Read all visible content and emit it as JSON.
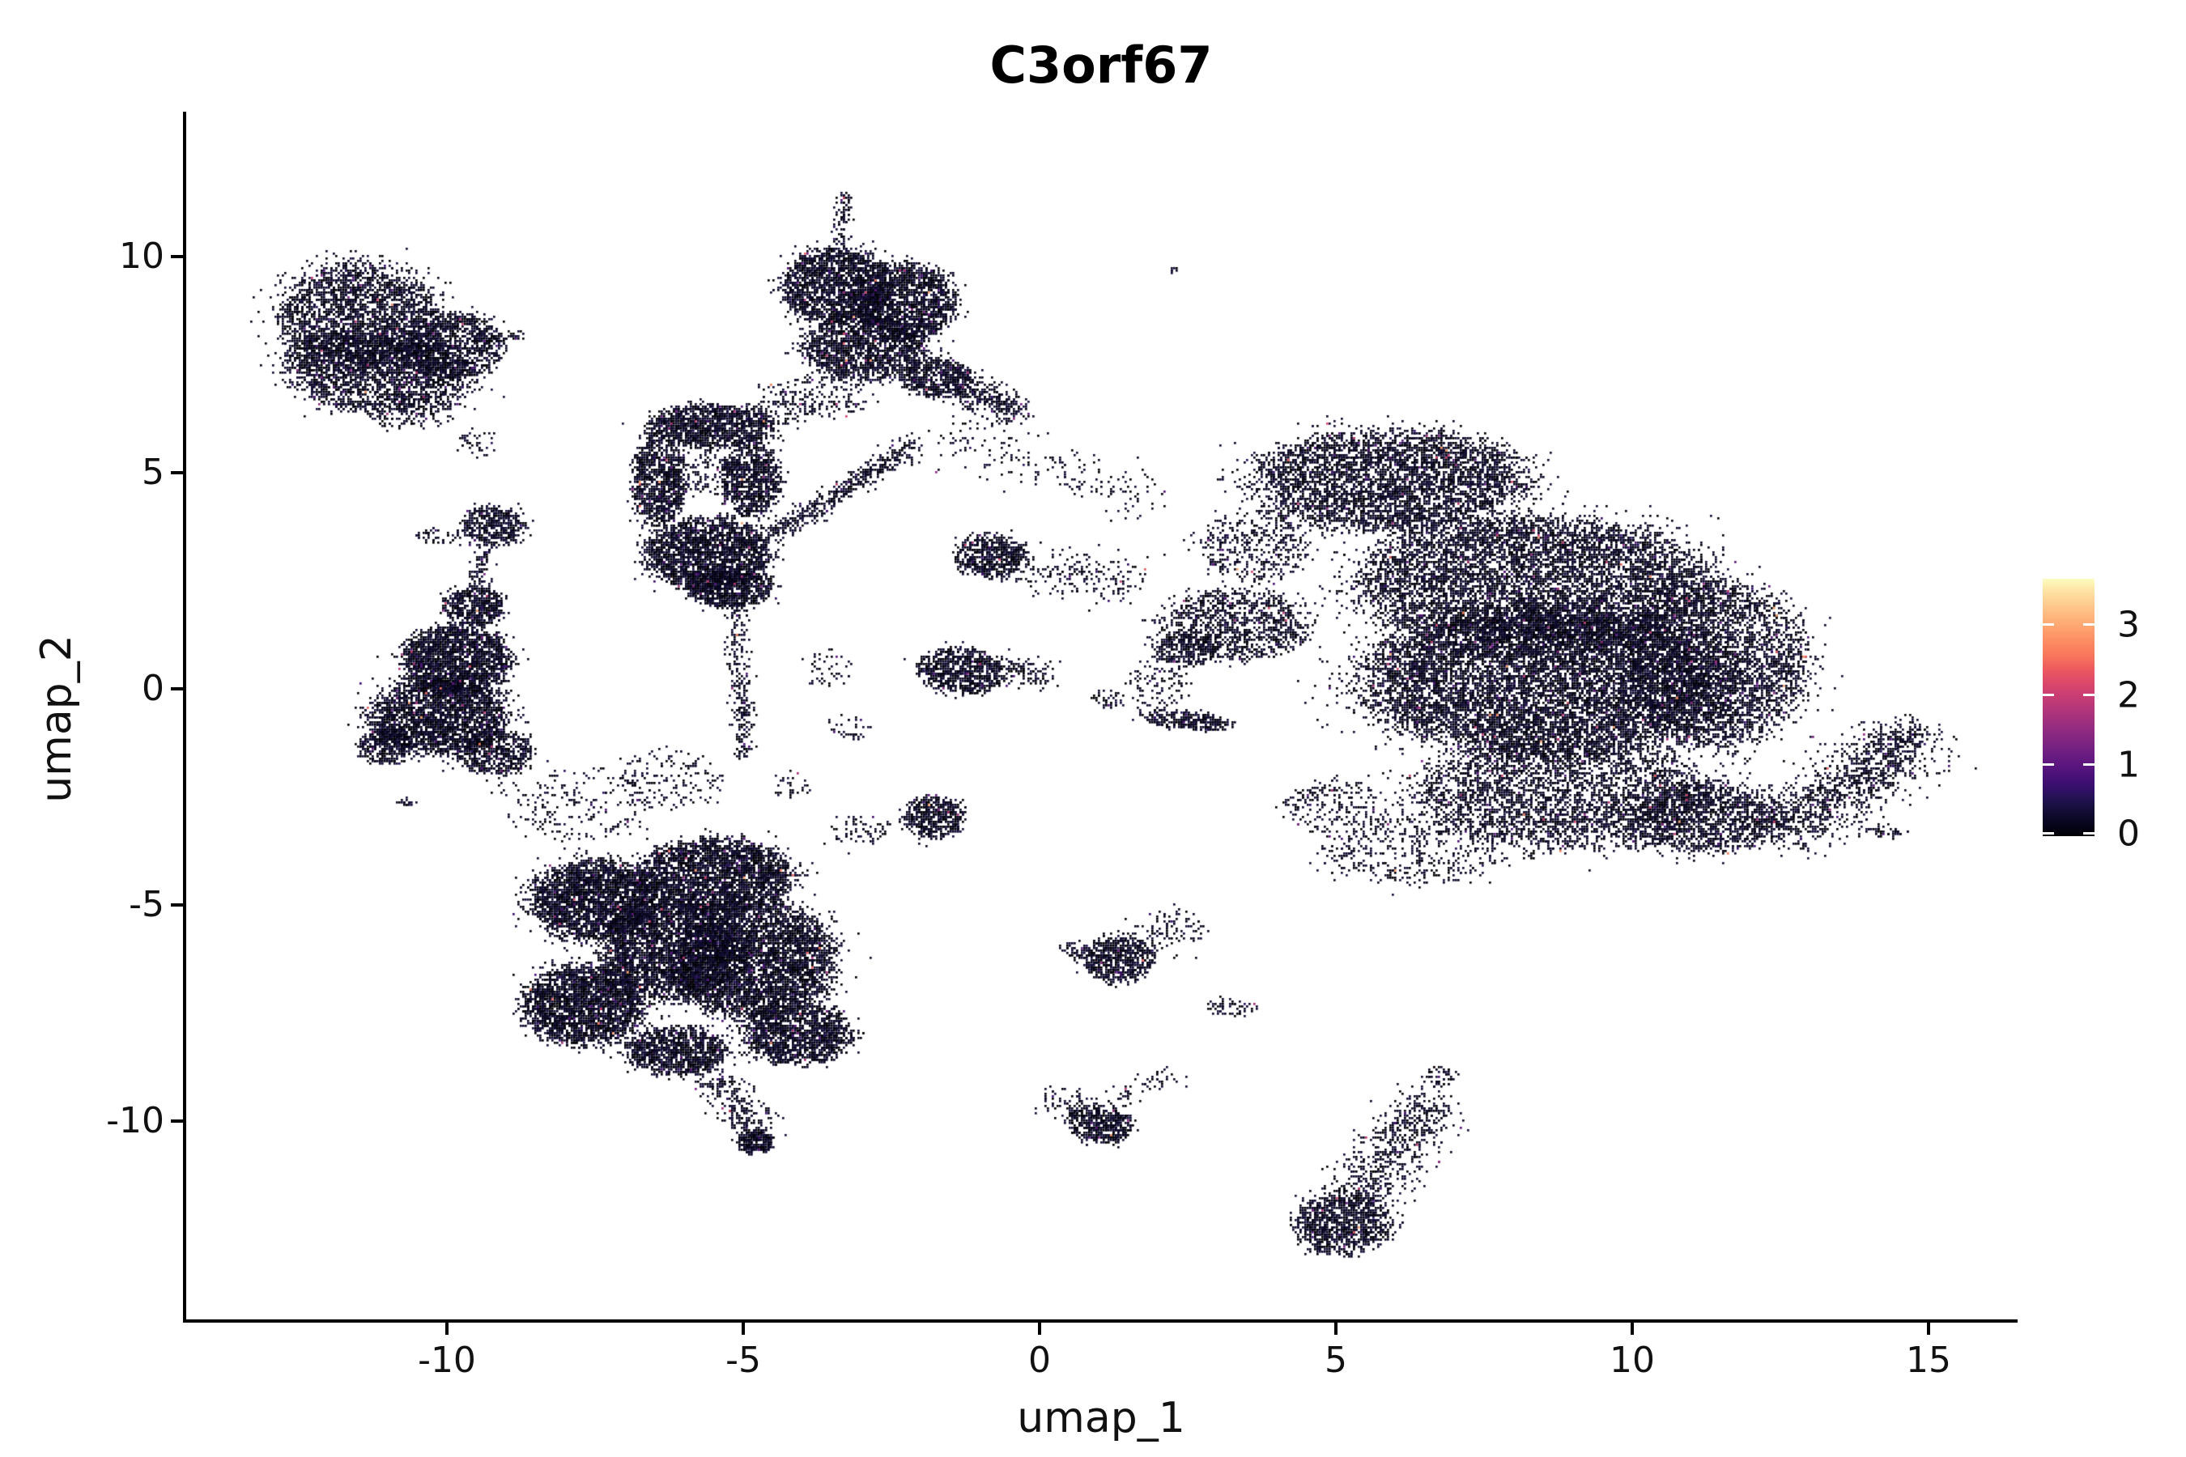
{
  "title": "C3orf67",
  "axes": {
    "xlabel": "umap_1",
    "ylabel": "umap_2",
    "x_ticks": [
      "-10",
      "-5",
      "0",
      "5",
      "10",
      "15"
    ],
    "y_ticks": [
      "10",
      "5",
      "0",
      "-5",
      "-10"
    ]
  },
  "colorbar": {
    "labels": [
      "3",
      "2",
      "1",
      "0"
    ],
    "tick_values": [
      3,
      2,
      1,
      0
    ],
    "value_range": [
      0,
      3.65
    ],
    "colormap": "magma",
    "gradient_bottom_to_top": [
      "#000004",
      "#07051e",
      "#140e36",
      "#251255",
      "#3b0f70",
      "#51127c",
      "#641a80",
      "#782281",
      "#8c2981",
      "#a1307e",
      "#b73779",
      "#ca3e72",
      "#de4968",
      "#ed5a5f",
      "#f8765c",
      "#fc8961",
      "#fe9f6d",
      "#feb57c",
      "#fecb8f",
      "#fde2a3",
      "#fcfdbf"
    ]
  },
  "chart_data": {
    "type": "scatter",
    "title": "C3orf67",
    "xlabel": "umap_1",
    "ylabel": "umap_2",
    "x_tick_values": [
      -10,
      -5,
      0,
      5,
      10,
      15
    ],
    "y_tick_values": [
      10,
      5,
      0,
      -5,
      -10
    ],
    "xlim": [
      -14.4,
      16.5
    ],
    "ylim": [
      -14.6,
      13.4
    ],
    "grid": false,
    "legend": "colorbar right, expression 0-3.65, magma",
    "point_palette": {
      "dark": [
        "#000004",
        "#010107",
        "#030313",
        "#06051c",
        "#090724",
        "#0d092b",
        "#110c33",
        "#15103a"
      ],
      "purple": [
        "#2c115f",
        "#3b0f70",
        "#4c1277",
        "#5c177f"
      ],
      "magenta": [
        "#792282",
        "#8f2a7f",
        "#a82e78",
        "#c03a6f"
      ],
      "warm": [
        "#d8456c",
        "#eb5f5f",
        "#f67e58",
        "#fba26b"
      ]
    },
    "clusters": [
      {
        "id": "A1",
        "shape": "blob",
        "cx": -11.5,
        "cy": 8.6,
        "rx": 1.35,
        "ry": 1.25,
        "rot": -12,
        "n": 2600
      },
      {
        "id": "A2",
        "shape": "blob",
        "cx": -11.2,
        "cy": 7.35,
        "rx": 1.55,
        "ry": 0.95,
        "rot": -8,
        "n": 2300
      },
      {
        "id": "A3",
        "shape": "blob",
        "cx": -9.95,
        "cy": 7.95,
        "rx": 0.85,
        "ry": 0.8,
        "rot": 0,
        "n": 1100
      },
      {
        "id": "A4",
        "shape": "chain",
        "pts": [
          [
            -9.6,
            8.05
          ],
          [
            -8.75,
            8.2
          ]
        ],
        "w": 0.09,
        "n": 70
      },
      {
        "id": "A5",
        "shape": "blob",
        "cx": -10.6,
        "cy": 6.45,
        "rx": 0.7,
        "ry": 0.38,
        "rot": 0,
        "n": 120
      },
      {
        "id": "A6",
        "shape": "blob",
        "cx": -9.5,
        "cy": 5.7,
        "rx": 0.35,
        "ry": 0.35,
        "rot": 0,
        "n": 40
      },
      {
        "id": "B1",
        "shape": "blob",
        "cx": -3.45,
        "cy": 9.35,
        "rx": 0.9,
        "ry": 0.85,
        "rot": 0,
        "n": 1900
      },
      {
        "id": "B2",
        "shape": "blob",
        "cx": -2.3,
        "cy": 8.95,
        "rx": 0.85,
        "ry": 0.9,
        "rot": 0,
        "n": 1800
      },
      {
        "id": "B3",
        "shape": "blob",
        "cx": -2.95,
        "cy": 7.9,
        "rx": 1.05,
        "ry": 0.75,
        "rot": 0,
        "n": 1600
      },
      {
        "id": "B4",
        "shape": "blob",
        "cx": -1.75,
        "cy": 7.2,
        "rx": 0.6,
        "ry": 0.45,
        "rot": 0,
        "n": 550
      },
      {
        "id": "B5",
        "shape": "chain",
        "pts": [
          [
            -1.25,
            6.95
          ],
          [
            -0.3,
            6.4
          ]
        ],
        "w": 0.2,
        "n": 280
      },
      {
        "id": "B6",
        "shape": "chain",
        "pts": [
          [
            -3.38,
            10.25
          ],
          [
            -3.3,
            11.5
          ]
        ],
        "w": 0.07,
        "n": 90
      },
      {
        "id": "B7",
        "shape": "blob",
        "cx": -3.7,
        "cy": 6.8,
        "rx": 0.8,
        "ry": 0.5,
        "rot": 0,
        "n": 160
      },
      {
        "id": "B8",
        "shape": "chain",
        "pts": [
          [
            -1.6,
            5.9
          ],
          [
            0.2,
            5.1
          ],
          [
            1.9,
            4.35
          ]
        ],
        "w": 0.3,
        "n": 200
      },
      {
        "id": "C1",
        "shape": "blob",
        "cx": -5.55,
        "cy": 6.1,
        "rx": 1.05,
        "ry": 0.5,
        "rot": 0,
        "n": 1300
      },
      {
        "id": "C2",
        "shape": "blob",
        "cx": -6.45,
        "cy": 4.8,
        "rx": 0.45,
        "ry": 1.0,
        "rot": 0,
        "n": 950
      },
      {
        "id": "C3",
        "shape": "blob",
        "cx": -4.9,
        "cy": 4.85,
        "rx": 0.5,
        "ry": 0.85,
        "rot": 0,
        "n": 950
      },
      {
        "id": "C4",
        "shape": "blob",
        "cx": -5.6,
        "cy": 3.15,
        "rx": 1.05,
        "ry": 0.8,
        "rot": 0,
        "n": 2300
      },
      {
        "id": "C5",
        "shape": "blob",
        "cx": -5.25,
        "cy": 2.35,
        "rx": 0.7,
        "ry": 0.45,
        "rot": 0,
        "n": 800
      },
      {
        "id": "C6",
        "shape": "blob",
        "cx": -5.7,
        "cy": 5.0,
        "rx": 0.6,
        "ry": 0.55,
        "rot": 0,
        "n": 140
      },
      {
        "id": "C7",
        "shape": "chain",
        "pts": [
          [
            -5.15,
            1.95
          ],
          [
            -5.05,
            0.1
          ],
          [
            -5.0,
            -1.55
          ]
        ],
        "w": 0.1,
        "n": 280
      },
      {
        "id": "C8",
        "shape": "chain",
        "pts": [
          [
            -4.5,
            3.6
          ],
          [
            -3.3,
            4.65
          ],
          [
            -2.1,
            5.7
          ]
        ],
        "w": 0.13,
        "n": 480
      },
      {
        "id": "C9",
        "shape": "blob",
        "cx": -4.35,
        "cy": 6.6,
        "rx": 0.6,
        "ry": 0.45,
        "rot": 0,
        "n": 90
      },
      {
        "id": "S1",
        "shape": "blob",
        "cx": -9.25,
        "cy": 3.8,
        "rx": 0.5,
        "ry": 0.45,
        "rot": 0,
        "n": 440
      },
      {
        "id": "S1b",
        "shape": "blob",
        "cx": -10.15,
        "cy": 3.55,
        "rx": 0.35,
        "ry": 0.2,
        "rot": 0,
        "n": 50
      },
      {
        "id": "S1c",
        "shape": "chain",
        "pts": [
          [
            -9.35,
            3.3
          ],
          [
            -9.5,
            2.45
          ]
        ],
        "w": 0.1,
        "n": 80
      },
      {
        "id": "D1",
        "shape": "blob",
        "cx": -9.55,
        "cy": 1.95,
        "rx": 0.5,
        "ry": 0.45,
        "rot": 0,
        "n": 550
      },
      {
        "id": "D2",
        "shape": "blob",
        "cx": -9.85,
        "cy": 0.7,
        "rx": 0.9,
        "ry": 0.8,
        "rot": 0,
        "n": 2000
      },
      {
        "id": "D3",
        "shape": "blob",
        "cx": -10.15,
        "cy": -0.6,
        "rx": 1.15,
        "ry": 0.9,
        "rot": 0,
        "n": 2700
      },
      {
        "id": "D4",
        "shape": "blob",
        "cx": -11.05,
        "cy": -1.3,
        "rx": 0.45,
        "ry": 0.4,
        "rot": 0,
        "n": 380
      },
      {
        "id": "D5",
        "shape": "blob",
        "cx": -9.2,
        "cy": -1.45,
        "rx": 0.6,
        "ry": 0.5,
        "rot": 0,
        "n": 600
      },
      {
        "id": "S2",
        "shape": "blob",
        "cx": -10.7,
        "cy": -2.6,
        "rx": 0.15,
        "ry": 0.1,
        "rot": 0,
        "n": 20
      },
      {
        "id": "E1",
        "shape": "blob",
        "cx": -7.55,
        "cy": -4.85,
        "rx": 1.05,
        "ry": 0.9,
        "rot": 0,
        "n": 2700
      },
      {
        "id": "E2",
        "shape": "blob",
        "cx": -7.7,
        "cy": -7.3,
        "rx": 1.0,
        "ry": 0.9,
        "rot": 0,
        "n": 2600
      },
      {
        "id": "E3",
        "shape": "blob",
        "cx": -6.2,
        "cy": -6.0,
        "rx": 1.2,
        "ry": 1.15,
        "rot": 0,
        "n": 3300
      },
      {
        "id": "E4",
        "shape": "blob",
        "cx": -4.85,
        "cy": -6.25,
        "rx": 1.35,
        "ry": 1.35,
        "rot": 0,
        "n": 4300
      },
      {
        "id": "E5",
        "shape": "blob",
        "cx": -5.5,
        "cy": -4.3,
        "rx": 1.3,
        "ry": 0.85,
        "rot": 0,
        "n": 2900
      },
      {
        "id": "E6",
        "shape": "blob",
        "cx": -4.1,
        "cy": -7.95,
        "rx": 0.9,
        "ry": 0.7,
        "rot": 0,
        "n": 1500
      },
      {
        "id": "E7",
        "shape": "blob",
        "cx": -6.15,
        "cy": -8.35,
        "rx": 0.85,
        "ry": 0.55,
        "rot": 0,
        "n": 1100
      },
      {
        "id": "E8",
        "shape": "chain",
        "pts": [
          [
            -5.6,
            -8.95
          ],
          [
            -5.05,
            -9.75
          ],
          [
            -4.85,
            -10.3
          ]
        ],
        "w": 0.2,
        "n": 260
      },
      {
        "id": "E9",
        "shape": "blob",
        "cx": -4.8,
        "cy": -10.45,
        "rx": 0.3,
        "ry": 0.25,
        "rot": 0,
        "n": 270
      },
      {
        "id": "E10",
        "shape": "blob",
        "cx": -7.8,
        "cy": -2.65,
        "rx": 1.3,
        "ry": 0.85,
        "rot": 0,
        "n": 230
      },
      {
        "id": "E11",
        "shape": "blob",
        "cx": -6.2,
        "cy": -2.05,
        "rx": 0.9,
        "ry": 0.7,
        "rot": 0,
        "n": 150
      },
      {
        "id": "E12",
        "shape": "blob",
        "cx": -3.05,
        "cy": -3.25,
        "rx": 0.5,
        "ry": 0.4,
        "rot": 0,
        "n": 70
      },
      {
        "id": "F1",
        "shape": "blob",
        "cx": 5.9,
        "cy": 4.85,
        "rx": 2.25,
        "ry": 1.15,
        "rot": 0,
        "n": 4300
      },
      {
        "id": "F2",
        "shape": "blob",
        "cx": 8.3,
        "cy": 2.5,
        "rx": 2.9,
        "ry": 1.5,
        "rot": 0,
        "n": 6800
      },
      {
        "id": "F3",
        "shape": "blob",
        "cx": 8.6,
        "cy": 0.2,
        "rx": 3.1,
        "ry": 1.7,
        "rot": 0,
        "n": 9800
      },
      {
        "id": "F4",
        "shape": "blob",
        "cx": 11.4,
        "cy": 0.6,
        "rx": 1.5,
        "ry": 1.9,
        "rot": 0,
        "n": 3500
      },
      {
        "id": "F5",
        "shape": "blob",
        "cx": 8.8,
        "cy": -2.4,
        "rx": 2.5,
        "ry": 1.25,
        "rot": 0,
        "n": 3300
      },
      {
        "id": "F6",
        "shape": "blob",
        "cx": 11.2,
        "cy": -2.95,
        "rx": 1.35,
        "ry": 0.8,
        "rot": 0,
        "n": 1400
      },
      {
        "id": "F7",
        "shape": "chain",
        "pts": [
          [
            12.35,
            -3.25
          ],
          [
            13.4,
            -2.45
          ],
          [
            14.2,
            -1.6
          ],
          [
            14.75,
            -1.05
          ]
        ],
        "w": 0.38,
        "n": 1200
      },
      {
        "id": "F7b",
        "shape": "chain",
        "pts": [
          [
            14.5,
            -1.2
          ],
          [
            14.85,
            -0.8
          ]
        ],
        "w": 0.1,
        "n": 50
      },
      {
        "id": "F8",
        "shape": "blob",
        "cx": 3.3,
        "cy": 1.5,
        "rx": 1.25,
        "ry": 0.8,
        "rot": 0,
        "n": 1100
      },
      {
        "id": "F8b",
        "shape": "blob",
        "cx": 2.45,
        "cy": 0.95,
        "rx": 0.5,
        "ry": 0.4,
        "rot": 0,
        "n": 280
      },
      {
        "id": "F9",
        "shape": "blob",
        "cx": 3.6,
        "cy": 3.3,
        "rx": 0.95,
        "ry": 0.85,
        "rot": 0,
        "n": 450
      },
      {
        "id": "F10",
        "shape": "blob",
        "cx": 6.3,
        "cy": -3.7,
        "rx": 1.6,
        "ry": 0.8,
        "rot": 0,
        "n": 450
      },
      {
        "id": "F10b",
        "shape": "blob",
        "cx": 4.95,
        "cy": -2.7,
        "rx": 0.85,
        "ry": 0.6,
        "rot": 0,
        "n": 220
      },
      {
        "id": "F11",
        "shape": "blob",
        "cx": 2.45,
        "cy": -0.7,
        "rx": 0.78,
        "ry": 0.22,
        "rot": -8,
        "n": 300
      },
      {
        "id": "F12",
        "shape": "blob",
        "cx": 14.2,
        "cy": -3.3,
        "rx": 0.4,
        "ry": 0.13,
        "rot": 0,
        "n": 45
      },
      {
        "id": "F13",
        "shape": "blob",
        "cx": 2.0,
        "cy": 0.1,
        "rx": 0.55,
        "ry": 0.6,
        "rot": 0,
        "n": 110
      },
      {
        "id": "F14",
        "shape": "blob",
        "cx": 1.15,
        "cy": -0.2,
        "rx": 0.3,
        "ry": 0.2,
        "rot": 0,
        "n": 40
      },
      {
        "id": "M1",
        "shape": "blob",
        "cx": -0.85,
        "cy": 3.1,
        "rx": 0.58,
        "ry": 0.5,
        "rot": 0,
        "n": 620
      },
      {
        "id": "M1b",
        "shape": "chain",
        "pts": [
          [
            -0.25,
            2.9
          ],
          [
            0.7,
            2.6
          ],
          [
            1.65,
            2.5
          ]
        ],
        "w": 0.28,
        "n": 200
      },
      {
        "id": "M2",
        "shape": "blob",
        "cx": -1.35,
        "cy": 0.45,
        "rx": 0.72,
        "ry": 0.52,
        "rot": -10,
        "n": 780
      },
      {
        "id": "M2b",
        "shape": "chain",
        "pts": [
          [
            -0.65,
            0.5
          ],
          [
            0.15,
            0.3
          ]
        ],
        "w": 0.18,
        "n": 110
      },
      {
        "id": "M3",
        "shape": "blob",
        "cx": -1.8,
        "cy": -2.95,
        "rx": 0.52,
        "ry": 0.47,
        "rot": 0,
        "n": 500
      },
      {
        "id": "M4",
        "shape": "blob",
        "cx": 1.3,
        "cy": -6.2,
        "rx": 0.6,
        "ry": 0.52,
        "rot": 0,
        "n": 650
      },
      {
        "id": "M4b",
        "shape": "chain",
        "pts": [
          [
            1.75,
            -5.85
          ],
          [
            2.5,
            -5.35
          ]
        ],
        "w": 0.28,
        "n": 110
      },
      {
        "id": "M4c",
        "shape": "blob",
        "cx": 0.55,
        "cy": -6.0,
        "rx": 0.25,
        "ry": 0.18,
        "rot": 0,
        "n": 40
      },
      {
        "id": "M5",
        "shape": "blob",
        "cx": 3.25,
        "cy": -7.35,
        "rx": 0.42,
        "ry": 0.2,
        "rot": 0,
        "n": 55
      },
      {
        "id": "M6",
        "shape": "blob",
        "cx": 1.0,
        "cy": -10.05,
        "rx": 0.55,
        "ry": 0.42,
        "rot": -15,
        "n": 520
      },
      {
        "id": "M6b",
        "shape": "blob",
        "cx": 0.45,
        "cy": -9.55,
        "rx": 0.5,
        "ry": 0.35,
        "rot": 0,
        "n": 70
      },
      {
        "id": "M6c",
        "shape": "chain",
        "pts": [
          [
            1.2,
            -9.6
          ],
          [
            2.2,
            -8.8
          ]
        ],
        "w": 0.15,
        "n": 60
      },
      {
        "id": "G1",
        "shape": "blob",
        "cx": 5.1,
        "cy": -12.35,
        "rx": 0.8,
        "ry": 0.7,
        "rot": 0,
        "n": 1050
      },
      {
        "id": "G2",
        "shape": "chain",
        "pts": [
          [
            5.3,
            -11.65
          ],
          [
            5.9,
            -10.85
          ],
          [
            6.35,
            -10.05
          ],
          [
            6.6,
            -9.5
          ]
        ],
        "w": 0.33,
        "n": 620
      },
      {
        "id": "G3",
        "shape": "blob",
        "cx": 6.75,
        "cy": -8.95,
        "rx": 0.28,
        "ry": 0.3,
        "rot": 0,
        "n": 55
      },
      {
        "id": "M8",
        "shape": "blob",
        "cx": 2.25,
        "cy": 9.7,
        "rx": 0.07,
        "ry": 0.1,
        "rot": 0,
        "n": 7
      },
      {
        "id": "M9",
        "shape": "blob",
        "cx": -3.6,
        "cy": 0.5,
        "rx": 0.45,
        "ry": 0.4,
        "rot": 0,
        "n": 45
      },
      {
        "id": "M10",
        "shape": "blob",
        "cx": -3.2,
        "cy": -0.9,
        "rx": 0.4,
        "ry": 0.3,
        "rot": 0,
        "n": 35
      },
      {
        "id": "M11",
        "shape": "blob",
        "cx": -4.2,
        "cy": -2.2,
        "rx": 0.35,
        "ry": 0.3,
        "rot": 0,
        "n": 30
      }
    ]
  }
}
